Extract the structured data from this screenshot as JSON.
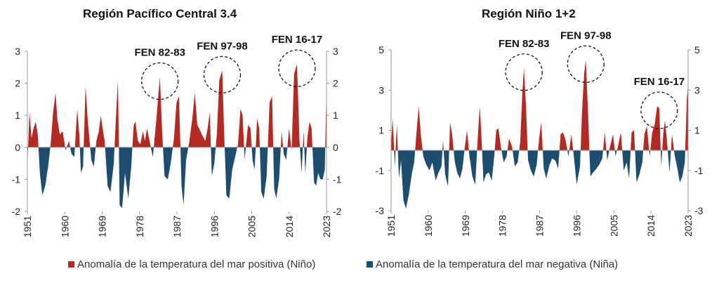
{
  "colors": {
    "positive": "#b22a22",
    "negative": "#1d4e6f",
    "axis": "#999999",
    "text": "#222222"
  },
  "legend": {
    "positive": "Anomalía de la temperatura del mar positiva (Niño)",
    "negative": "Anomalía de la temperatura del mar negativa (Niña)"
  },
  "chart_data": [
    {
      "type": "area",
      "title": "Región Pacífico Central 3.4",
      "x_range": [
        1951,
        2023
      ],
      "ylim": [
        -2,
        3
      ],
      "yticks": [
        -2,
        -1,
        0,
        1,
        2,
        3
      ],
      "xticks": [
        "1951",
        "1960",
        "1969",
        "1978",
        "1987",
        "1996",
        "2005",
        "2014",
        "2023"
      ],
      "annotations": [
        {
          "label": "FEN 82-83",
          "year": 1982.9
        },
        {
          "label": "FEN 97-98",
          "year": 1997.9
        },
        {
          "label": "FEN 16-17",
          "year": 2015.9
        }
      ],
      "series": [
        {
          "name": "Anomalía",
          "x": [
            1951,
            1951.5,
            1952,
            1952.5,
            1953,
            1953.5,
            1954,
            1954.6,
            1955.3,
            1956,
            1956.6,
            1957.2,
            1957.8,
            1958.2,
            1958.8,
            1959.5,
            1960.2,
            1961,
            1961.6,
            1962.3,
            1963,
            1963.5,
            1963.9,
            1964.4,
            1965,
            1965.5,
            1965.9,
            1966.4,
            1967,
            1967.6,
            1968.2,
            1968.7,
            1969.1,
            1969.6,
            1970.3,
            1971,
            1971.8,
            1972.3,
            1972.8,
            1973.2,
            1973.8,
            1974.5,
            1975.3,
            1976,
            1976.6,
            1977,
            1977.6,
            1978.2,
            1978.8,
            1979.3,
            1979.8,
            1980.4,
            1981.2,
            1982,
            1982.5,
            1982.9,
            1983.4,
            1984,
            1984.8,
            1985.5,
            1986.3,
            1986.9,
            1987.5,
            1988.1,
            1988.6,
            1989.2,
            1990,
            1990.7,
            1991.3,
            1991.9,
            1992.3,
            1993,
            1993.8,
            1994.4,
            1994.9,
            1995.4,
            1996,
            1996.6,
            1997.2,
            1997.9,
            1998.4,
            1998.9,
            1999.6,
            2000.3,
            2001,
            2001.7,
            2002.3,
            2002.8,
            2003.3,
            2004.1,
            2004.7,
            2005.2,
            2005.7,
            2006.3,
            2006.8,
            2007.3,
            2007.9,
            2008.6,
            2009.3,
            2009.9,
            2010.4,
            2010.9,
            2011.6,
            2012.2,
            2012.7,
            2013.3,
            2014,
            2014.6,
            2015.2,
            2015.9,
            2016.5,
            2017,
            2017.5,
            2017.9,
            2018.4,
            2018.9,
            2019.4,
            2020,
            2020.5,
            2021,
            2021.5,
            2022.1,
            2022.6,
            2023
          ],
          "values": [
            -0.6,
            1.1,
            0.3,
            0.6,
            0.8,
            0.4,
            -0.8,
            -1.5,
            -1.2,
            -0.6,
            0.1,
            1.1,
            1.7,
            0.9,
            0.4,
            0.5,
            -0.1,
            0.2,
            -0.2,
            -0.3,
            1.2,
            0.4,
            -0.8,
            -0.6,
            1.9,
            0.9,
            0.3,
            -0.4,
            -0.6,
            0.2,
            0.5,
            1.0,
            0.6,
            0.2,
            -1.2,
            -1.4,
            -0.5,
            0.9,
            2.1,
            -1.8,
            -1.9,
            -0.8,
            -1.6,
            -0.6,
            0.7,
            0.8,
            0.2,
            0.1,
            0.5,
            0.2,
            0.6,
            0.2,
            -0.3,
            0.8,
            1.6,
            2.2,
            0.6,
            -0.9,
            -1.0,
            -0.5,
            0.3,
            1.4,
            1.6,
            -1.2,
            -1.8,
            -0.4,
            0.2,
            0.9,
            1.7,
            0.7,
            0.6,
            0.4,
            0.2,
            0.6,
            1.1,
            -0.9,
            -0.5,
            0.4,
            2.1,
            2.4,
            0.3,
            -1.5,
            -1.6,
            -0.7,
            -0.3,
            0.1,
            1.2,
            1.0,
            -0.4,
            0.7,
            0.6,
            -0.4,
            -0.7,
            0.9,
            0.6,
            -1.4,
            -1.6,
            -0.9,
            1.4,
            1.6,
            -1.3,
            -1.6,
            -1.0,
            0.5,
            -0.2,
            -0.4,
            0.6,
            -0.1,
            2.3,
            2.6,
            0.2,
            -0.8,
            0.5,
            -0.8,
            0.3,
            0.8,
            0.6,
            -1.1,
            -1.2,
            -0.8,
            -1.0,
            -1.0,
            -0.7,
            2.0
          ]
        }
      ]
    },
    {
      "type": "area",
      "title": "Región Niño 1+2",
      "x_range": [
        1951,
        2023
      ],
      "ylim": [
        -3,
        5
      ],
      "yticks": [
        -3,
        -1,
        1,
        3,
        5
      ],
      "xticks": [
        "1951",
        "1960",
        "1969",
        "1978",
        "1987",
        "1996",
        "2005",
        "2014",
        "2023"
      ],
      "annotations": [
        {
          "label": "FEN 82-83",
          "year": 1983.2
        },
        {
          "label": "FEN 97-98",
          "year": 1998.2
        },
        {
          "label": "FEN 16-17",
          "year": 2016.0
        }
      ],
      "series": [
        {
          "name": "Anomalía",
          "x": [
            1951,
            1951.4,
            1951.9,
            1952.4,
            1952.9,
            1953.4,
            1954,
            1954.6,
            1955.3,
            1956,
            1956.6,
            1957.2,
            1957.7,
            1958.2,
            1958.8,
            1959.5,
            1960.3,
            1961,
            1961.8,
            1962.5,
            1963.2,
            1963.6,
            1964.1,
            1964.8,
            1965.3,
            1965.8,
            1966.4,
            1967,
            1967.7,
            1968.3,
            1968.9,
            1969.4,
            1970,
            1970.7,
            1971.4,
            1972,
            1972.5,
            1972.9,
            1973.4,
            1974,
            1974.7,
            1975.4,
            1976,
            1976.5,
            1977,
            1977.6,
            1978.3,
            1979,
            1979.6,
            1980.3,
            1981,
            1981.7,
            1982.3,
            1982.8,
            1983.2,
            1983.7,
            1984.2,
            1984.9,
            1985.6,
            1986.3,
            1986.9,
            1987.4,
            1988,
            1988.6,
            1989.3,
            1990,
            1990.8,
            1991.5,
            1992.1,
            1992.6,
            1993.2,
            1994,
            1994.7,
            1995.3,
            1996,
            1996.8,
            1997.3,
            1997.8,
            1998.2,
            1998.7,
            1999.3,
            2000,
            2000.8,
            2001.5,
            2002.2,
            2002.8,
            2003.4,
            2004.1,
            2004.8,
            2005.4,
            2006,
            2006.7,
            2007.4,
            2008.1,
            2008.7,
            2009.3,
            2009.9,
            2010.5,
            2011.2,
            2011.9,
            2012.4,
            2013,
            2013.7,
            2014.3,
            2014.9,
            2015.5,
            2016,
            2016.5,
            2017,
            2017.4,
            2017.9,
            2018.5,
            2019.1,
            2019.7,
            2020.3,
            2021,
            2021.6,
            2022.2,
            2022.7,
            2023
          ],
          "values": [
            0.3,
            1.6,
            -0.8,
            1.3,
            -1.4,
            -0.5,
            -2.5,
            -2.9,
            -2.2,
            -1.2,
            -0.6,
            1.0,
            2.2,
            0.8,
            -0.3,
            -0.7,
            -1.0,
            -0.6,
            -1.5,
            -1.1,
            -0.8,
            0.5,
            -1.2,
            -1.8,
            1.4,
            0.8,
            -0.5,
            -1.1,
            -1.4,
            -0.9,
            0.2,
            1.0,
            -0.3,
            -1.3,
            -1.7,
            0.6,
            2.2,
            0.7,
            -1.6,
            -1.2,
            -1.1,
            -1.5,
            -0.3,
            1.0,
            1.1,
            0.2,
            -0.6,
            -0.3,
            0.6,
            0.2,
            -0.8,
            -0.6,
            0.4,
            2.8,
            4.1,
            2.2,
            -0.5,
            -1.0,
            -1.3,
            -0.7,
            0.6,
            1.4,
            -0.9,
            -1.4,
            -0.8,
            -0.4,
            -0.5,
            -0.9,
            0.8,
            0.9,
            0.6,
            -0.3,
            0.8,
            -0.3,
            -1.7,
            -0.8,
            2.0,
            3.8,
            4.5,
            2.1,
            -1.3,
            -1.1,
            -0.9,
            -0.7,
            -0.4,
            0.9,
            -0.5,
            0.2,
            0.8,
            -0.3,
            0.2,
            0.9,
            -1.0,
            -0.6,
            -1.4,
            0.9,
            1.0,
            -1.6,
            -1.2,
            -0.6,
            0.8,
            1.2,
            -0.3,
            0.9,
            1.3,
            2.2,
            2.1,
            -0.8,
            0.9,
            1.5,
            0.4,
            -1.1,
            0.8,
            -0.2,
            -0.8,
            -1.6,
            -1.3,
            -0.6,
            2.6,
            3.3
          ]
        }
      ]
    }
  ]
}
